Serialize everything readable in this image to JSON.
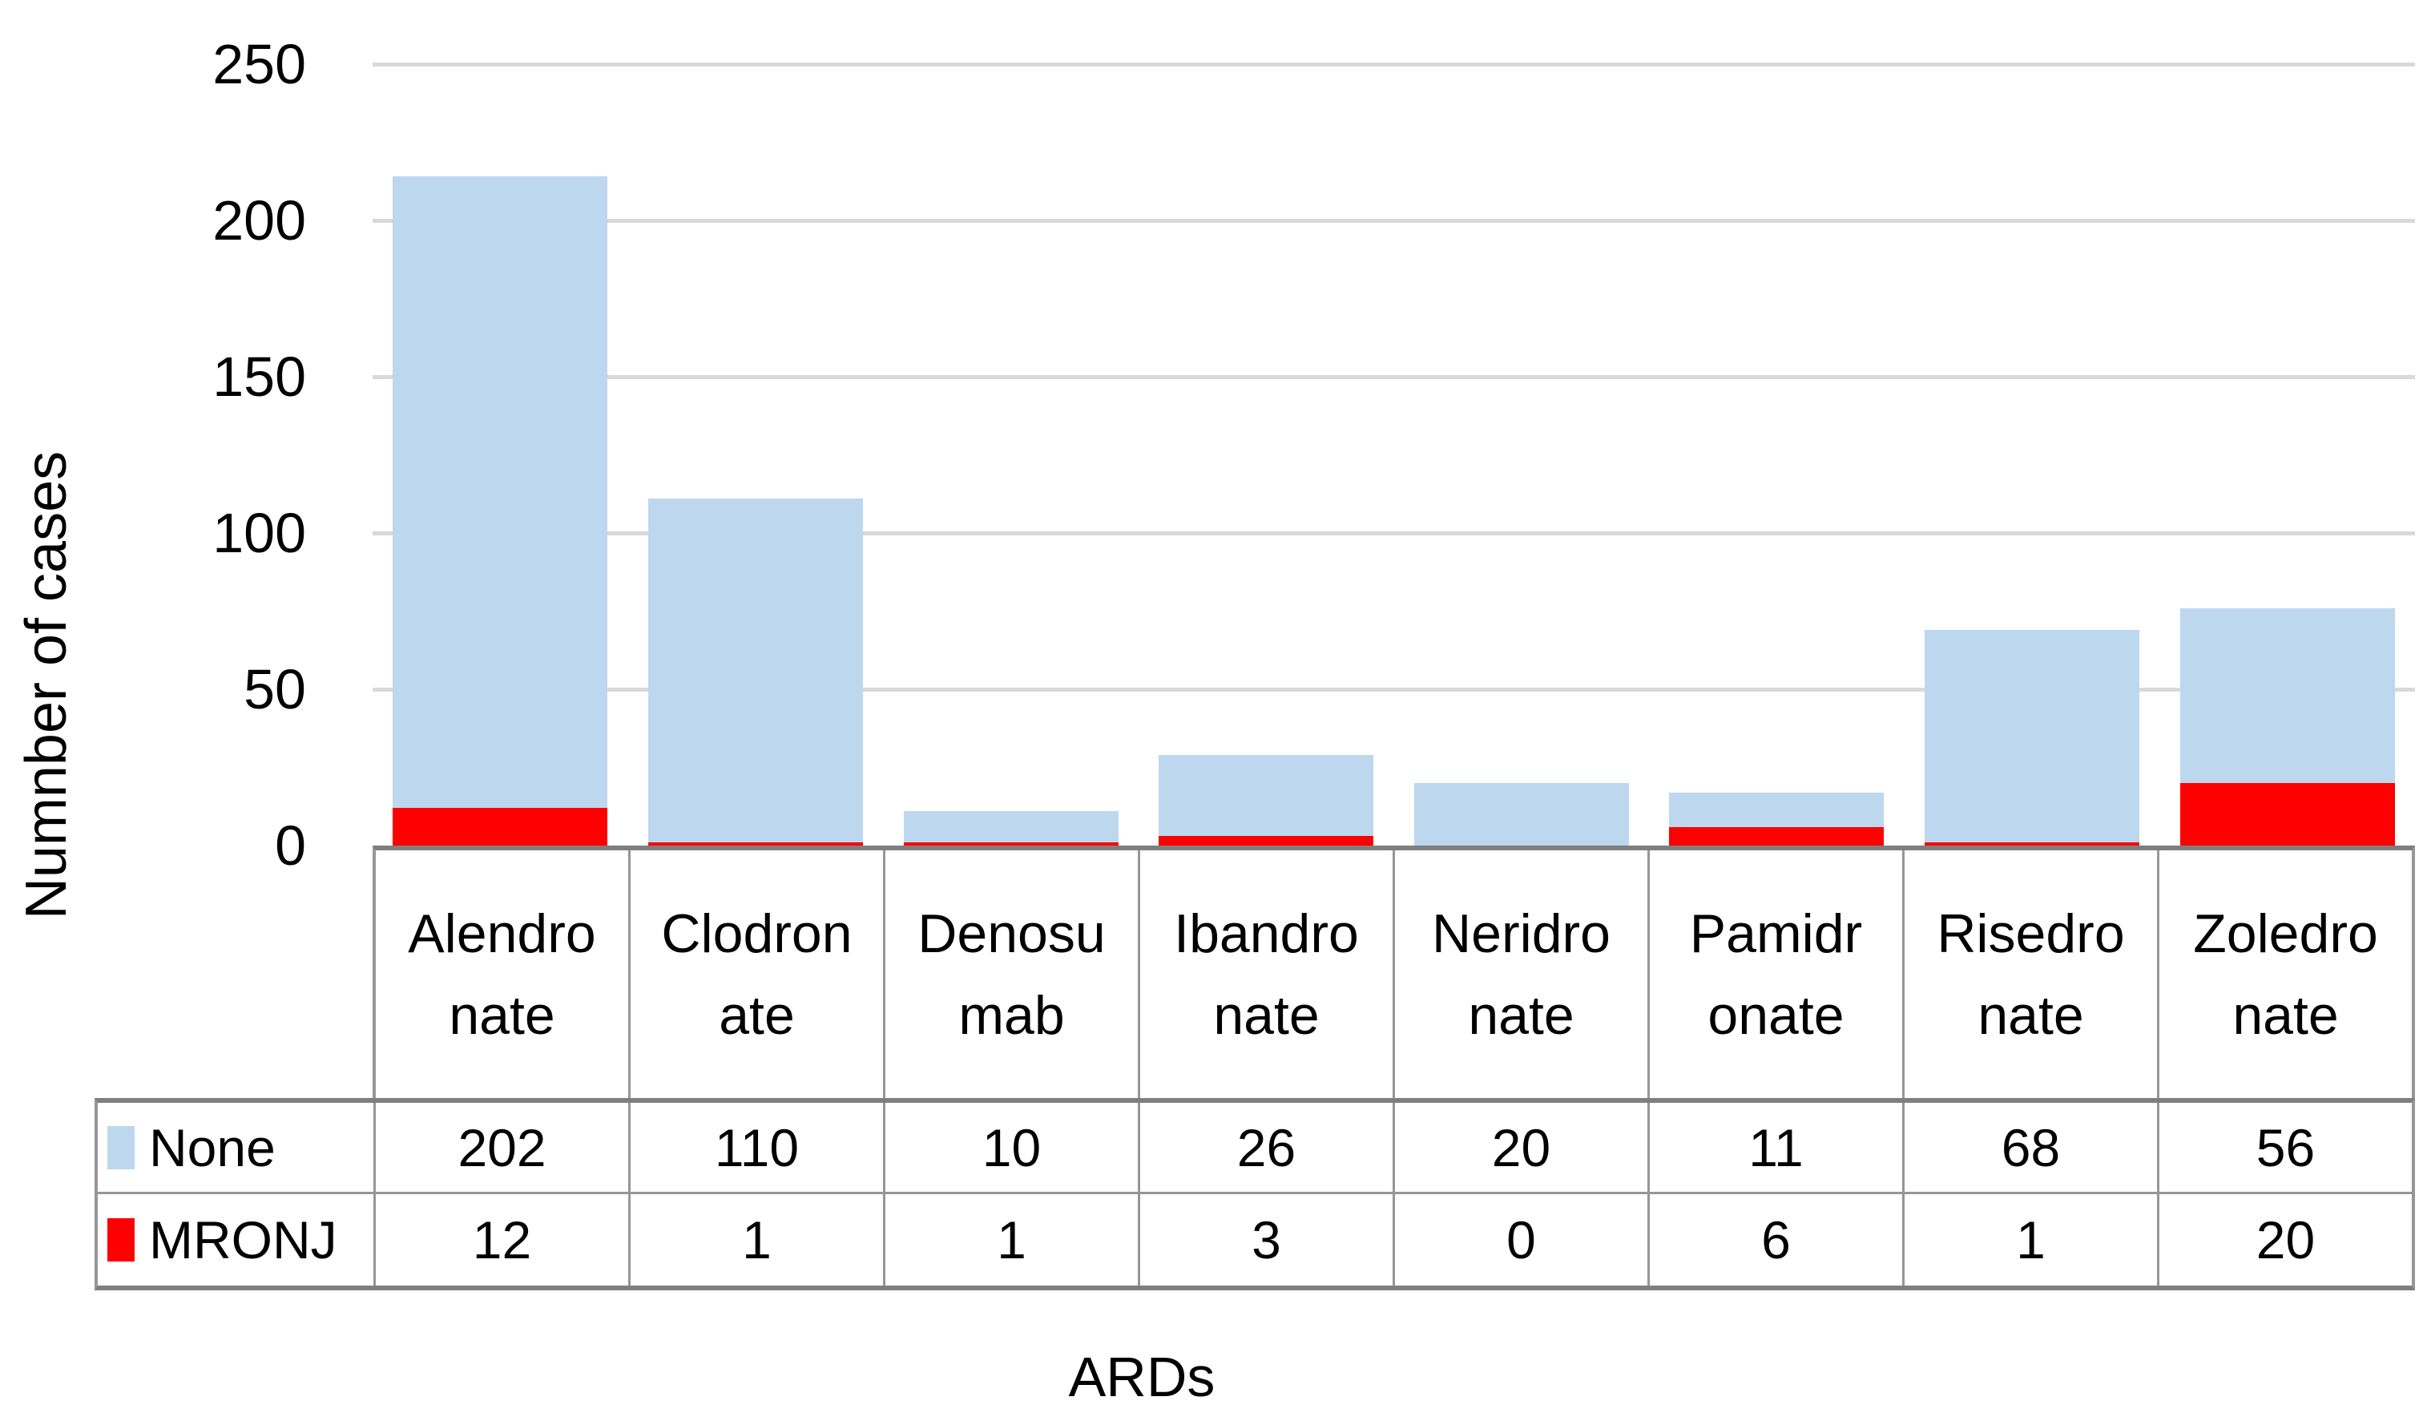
{
  "chart_data": {
    "type": "bar",
    "stacked": true,
    "title": "",
    "xlabel": "ARDs",
    "ylabel": "Numnber of cases",
    "ylim": [
      0,
      250
    ],
    "yticks": [
      0,
      50,
      100,
      150,
      200,
      250
    ],
    "grid": true,
    "legend_position": "table-left",
    "categories": [
      "Alendronate",
      "Clodronate",
      "Denosumab",
      "Ibandronate",
      "Neridronate",
      "Pamidronate",
      "Risedronate",
      "Zoledronate"
    ],
    "category_label_lines": [
      [
        "Alendro",
        "nate"
      ],
      [
        "Clodron",
        "ate"
      ],
      [
        "Denosu",
        "mab"
      ],
      [
        "Ibandro",
        "nate"
      ],
      [
        "Neridro",
        "nate"
      ],
      [
        "Pamidr",
        "onate"
      ],
      [
        "Risedro",
        "nate"
      ],
      [
        "Zoledro",
        "nate"
      ]
    ],
    "series": [
      {
        "name": "None",
        "color": "#BDD7EE",
        "values": [
          202,
          110,
          10,
          26,
          20,
          11,
          68,
          56
        ]
      },
      {
        "name": "MRONJ",
        "color": "#FF0000",
        "values": [
          12,
          1,
          1,
          3,
          0,
          6,
          1,
          20
        ]
      }
    ],
    "stack_order_bottom_to_top": [
      "MRONJ",
      "None"
    ]
  },
  "colors": {
    "none_fill": "#BDD7EE",
    "mronj_fill": "#FF0000",
    "gridline": "#D9D9D9",
    "table_border": "#969696",
    "table_border_heavy": "#7F7F7F",
    "text": "#000000",
    "background": "#FFFFFF"
  }
}
